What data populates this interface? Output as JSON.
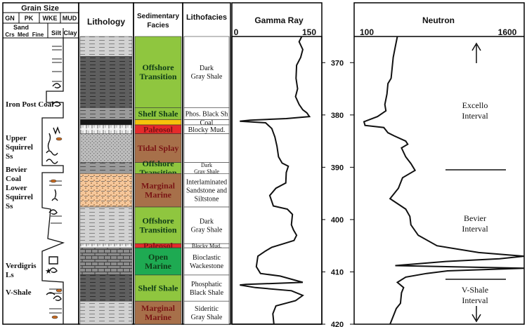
{
  "headers": {
    "grain_size": "Grain Size",
    "gn": "GN",
    "pk": "PK",
    "wke": "WKE",
    "mud": "MUD",
    "sand": "Sand",
    "crs": "Crs",
    "med": "Med",
    "fine": "Fine",
    "silt": "Silt",
    "clay": "Clay",
    "lithology": "Lithology",
    "sed_facies_1": "Sedimentary",
    "sed_facies_2": "Facies",
    "lithofacies": "Lithofacies",
    "gamma_ray": "Gamma Ray",
    "neutron": "Neutron"
  },
  "unit_labels": [
    {
      "lines": [
        "Iron Post Coal"
      ]
    },
    {
      "lines": [
        "Upper",
        "Squirrel",
        "Ss"
      ]
    },
    {
      "lines": [
        "Bevier",
        "Coal"
      ]
    },
    {
      "lines": [
        "Lower",
        "Squirrel",
        "Ss"
      ]
    },
    {
      "lines": [
        "Verdigris",
        "Ls"
      ]
    },
    {
      "lines": [
        "V-Shale"
      ]
    }
  ],
  "facies": [
    {
      "top": 365,
      "bottom": 378.6,
      "color": "#8fc63f",
      "lines": [
        "Offshore",
        "Transition"
      ]
    },
    {
      "top": 378.6,
      "bottom": 380.9,
      "color": "#8fc63f",
      "lines": [
        "Shelf Shale"
      ]
    },
    {
      "top": 380.9,
      "bottom": 381.9,
      "color": "#f6c30b",
      "lines": []
    },
    {
      "top": 381.9,
      "bottom": 383.6,
      "color": "#e52b2b",
      "lines": [
        "Paleosol"
      ]
    },
    {
      "top": 383.6,
      "bottom": 389.1,
      "color": "#a7704a",
      "lines": [
        "Tidal Splay"
      ]
    },
    {
      "top": 389.1,
      "bottom": 391.2,
      "color": "#8fc63f",
      "lines": [
        "Offshore",
        "Transition"
      ]
    },
    {
      "top": 391.2,
      "bottom": 397.6,
      "color": "#a7704a",
      "lines": [
        "Marginal",
        "Marine"
      ]
    },
    {
      "top": 397.6,
      "bottom": 404.6,
      "color": "#8fc63f",
      "lines": [
        "Offshore",
        "Transition"
      ]
    },
    {
      "top": 404.6,
      "bottom": 405.4,
      "color": "#e52b2b",
      "lines": [
        "Paleosol"
      ]
    },
    {
      "top": 405.4,
      "bottom": 410.6,
      "color": "#1eaa52",
      "lines": [
        "Open",
        "Marine"
      ]
    },
    {
      "top": 410.6,
      "bottom": 415.6,
      "color": "#8fc63f",
      "lines": [
        "Shelf Shale"
      ]
    },
    {
      "top": 415.6,
      "bottom": 420,
      "color": "#a7704a",
      "lines": [
        "Marginal",
        "Marine"
      ]
    }
  ],
  "lithofacies": [
    {
      "top": 365,
      "bottom": 378.6,
      "lines": [
        "Dark",
        "Gray Shale"
      ],
      "small": false
    },
    {
      "top": 378.6,
      "bottom": 380.9,
      "lines": [
        "Phos. Black Sh"
      ],
      "small": false
    },
    {
      "top": 380.9,
      "bottom": 381.9,
      "lines": [
        "Coal"
      ],
      "small": false
    },
    {
      "top": 381.9,
      "bottom": 383.6,
      "lines": [
        "Blocky Mud."
      ],
      "small": false
    },
    {
      "top": 383.6,
      "bottom": 389.1,
      "lines": [],
      "small": false
    },
    {
      "top": 389.1,
      "bottom": 391.2,
      "lines": [
        "Dark",
        "Gray Shale"
      ],
      "small": true
    },
    {
      "top": 391.2,
      "bottom": 397.6,
      "lines": [
        "Interlaminated",
        "Sandstone and",
        "Siltstone"
      ],
      "small": false
    },
    {
      "top": 397.6,
      "bottom": 404.6,
      "lines": [
        "Dark",
        "Gray Shale"
      ],
      "small": false
    },
    {
      "top": 404.6,
      "bottom": 405.4,
      "lines": [
        "Blocky Mud."
      ],
      "small": true
    },
    {
      "top": 405.4,
      "bottom": 410.6,
      "lines": [
        "Bioclastic",
        "Wackestone"
      ],
      "small": false
    },
    {
      "top": 410.6,
      "bottom": 415.6,
      "lines": [
        "Phosphatic",
        "Black Shale"
      ],
      "small": false
    },
    {
      "top": 415.6,
      "bottom": 420,
      "lines": [
        "Sideritic",
        "Gray Shale"
      ],
      "small": false
    }
  ],
  "lithology": [
    {
      "top": 365,
      "bottom": 368.8,
      "pattern": "shale-light"
    },
    {
      "top": 368.8,
      "bottom": 378.6,
      "pattern": "shale-dark"
    },
    {
      "top": 378.6,
      "bottom": 380.9,
      "pattern": "shale-mid"
    },
    {
      "top": 380.9,
      "bottom": 381.9,
      "pattern": "coal"
    },
    {
      "top": 381.9,
      "bottom": 383.6,
      "pattern": "paleosol"
    },
    {
      "top": 383.6,
      "bottom": 389.1,
      "pattern": "sand-dots"
    },
    {
      "top": 389.1,
      "bottom": 391.2,
      "pattern": "shale-mid"
    },
    {
      "top": 391.2,
      "bottom": 397.6,
      "pattern": "sand-orange"
    },
    {
      "top": 397.6,
      "bottom": 404.6,
      "pattern": "shale-light"
    },
    {
      "top": 404.6,
      "bottom": 405.4,
      "pattern": "paleosol"
    },
    {
      "top": 405.4,
      "bottom": 410.6,
      "pattern": "limestone"
    },
    {
      "top": 410.6,
      "bottom": 415.6,
      "pattern": "shale-dark"
    },
    {
      "top": 415.6,
      "bottom": 420,
      "pattern": "shale-light"
    }
  ],
  "depth_ticks": [
    "370",
    "380",
    "390",
    "400",
    "410",
    "420"
  ],
  "gamma": {
    "min": "0",
    "max": "150",
    "min_value": 0,
    "max_value": 150,
    "points": [
      [
        130,
        365
      ],
      [
        125,
        366
      ],
      [
        132,
        367.5
      ],
      [
        128,
        369
      ],
      [
        120,
        370.5
      ],
      [
        119,
        373
      ],
      [
        122,
        375
      ],
      [
        118,
        376.5
      ],
      [
        125,
        378
      ],
      [
        132,
        379
      ],
      [
        140,
        379.6
      ],
      [
        145,
        380.3
      ],
      [
        100,
        380.7
      ],
      [
        30,
        381
      ],
      [
        10,
        381.2
      ],
      [
        60,
        381.5
      ],
      [
        72,
        382.6
      ],
      [
        75,
        383.4
      ],
      [
        78,
        384.2
      ],
      [
        82,
        386
      ],
      [
        85,
        388
      ],
      [
        92,
        389.2
      ],
      [
        104,
        389.8
      ],
      [
        100,
        391
      ],
      [
        99,
        393
      ],
      [
        80,
        394
      ],
      [
        68,
        395.4
      ],
      [
        75,
        397.4
      ],
      [
        102,
        398
      ],
      [
        112,
        399
      ],
      [
        110,
        401
      ],
      [
        114,
        402
      ],
      [
        120,
        403
      ],
      [
        115,
        404
      ],
      [
        92,
        404.7
      ],
      [
        72,
        405.3
      ],
      [
        60,
        406
      ],
      [
        45,
        407
      ],
      [
        42,
        409
      ],
      [
        50,
        410.3
      ],
      [
        88,
        410.8
      ],
      [
        132,
        412
      ],
      [
        22,
        412.4
      ],
      [
        10,
        412.5
      ],
      [
        40,
        413
      ],
      [
        110,
        413.6
      ],
      [
        132,
        414.5
      ],
      [
        118,
        415.5
      ],
      [
        80,
        416.5
      ],
      [
        74,
        418
      ],
      [
        76,
        420
      ]
    ]
  },
  "neutron": {
    "min": "100",
    "max": "1600",
    "min_value": 100,
    "max_value": 1600,
    "points": [
      [
        420,
        365
      ],
      [
        400,
        367
      ],
      [
        380,
        369
      ],
      [
        370,
        371
      ],
      [
        360,
        373
      ],
      [
        330,
        374
      ],
      [
        320,
        376
      ],
      [
        300,
        378
      ],
      [
        310,
        379.2
      ],
      [
        230,
        380.3
      ],
      [
        100,
        381.3
      ],
      [
        110,
        382
      ],
      [
        290,
        382.4
      ],
      [
        330,
        383.4
      ],
      [
        390,
        384
      ],
      [
        500,
        385
      ],
      [
        520,
        385.6
      ],
      [
        460,
        386.3
      ],
      [
        500,
        388
      ],
      [
        550,
        389.3
      ],
      [
        590,
        390.6
      ],
      [
        470,
        392
      ],
      [
        430,
        394
      ],
      [
        350,
        396
      ],
      [
        500,
        398
      ],
      [
        540,
        399.4
      ],
      [
        550,
        401
      ],
      [
        620,
        403
      ],
      [
        800,
        405
      ],
      [
        1200,
        406.3
      ],
      [
        1700,
        407
      ],
      [
        1400,
        407.5
      ],
      [
        900,
        408
      ],
      [
        400,
        408.8
      ],
      [
        1700,
        409.3
      ],
      [
        900,
        409.8
      ],
      [
        700,
        410.3
      ],
      [
        500,
        411
      ],
      [
        420,
        412
      ],
      [
        480,
        413
      ],
      [
        460,
        414
      ],
      [
        450,
        416
      ],
      [
        410,
        417
      ],
      [
        380,
        418.5
      ],
      [
        350,
        420
      ]
    ]
  },
  "intervals": [
    {
      "lines": [
        "Excello",
        "Interval"
      ]
    },
    {
      "lines": [
        "Bevier",
        "Interval"
      ]
    },
    {
      "lines": [
        "V-Shale",
        "Interval"
      ]
    }
  ]
}
